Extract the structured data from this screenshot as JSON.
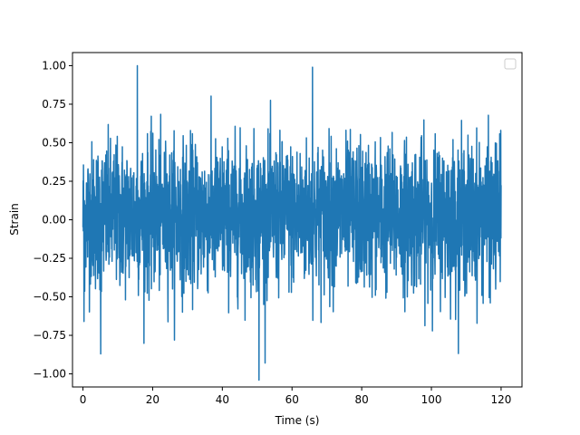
{
  "chart_data": {
    "type": "line",
    "xlabel": "Time (s)",
    "ylabel": "Strain",
    "xlim": [
      -3.0,
      126.0
    ],
    "ylim": [
      -1.085,
      1.085
    ],
    "xticks": [
      0,
      20,
      40,
      60,
      80,
      100,
      120
    ],
    "xtick_labels": [
      "0",
      "20",
      "40",
      "60",
      "80",
      "100",
      "120"
    ],
    "yticks": [
      -1.0,
      -0.75,
      -0.5,
      -0.25,
      0.0,
      0.25,
      0.5,
      0.75,
      1.0
    ],
    "ytick_labels": [
      "−1.00",
      "−0.75",
      "−0.50",
      "−0.25",
      "0.00",
      "0.25",
      "0.50",
      "0.75",
      "1.00"
    ],
    "grid": false,
    "legend": "top-right",
    "legend_entries": [],
    "series": [
      {
        "color": "#1f77b4",
        "x_range": [
          0,
          120
        ],
        "samples": 2400,
        "typical_envelope": [
          -0.45,
          0.5
        ],
        "peaks": [
          {
            "x": 15.6,
            "y": 1.0
          },
          {
            "x": 65.9,
            "y": 0.99
          },
          {
            "x": 50.5,
            "y": -1.04
          },
          {
            "x": 5.1,
            "y": -0.87
          },
          {
            "x": 0.3,
            "y": -0.66
          },
          {
            "x": 119.9,
            "y": 0.58
          }
        ]
      }
    ]
  }
}
